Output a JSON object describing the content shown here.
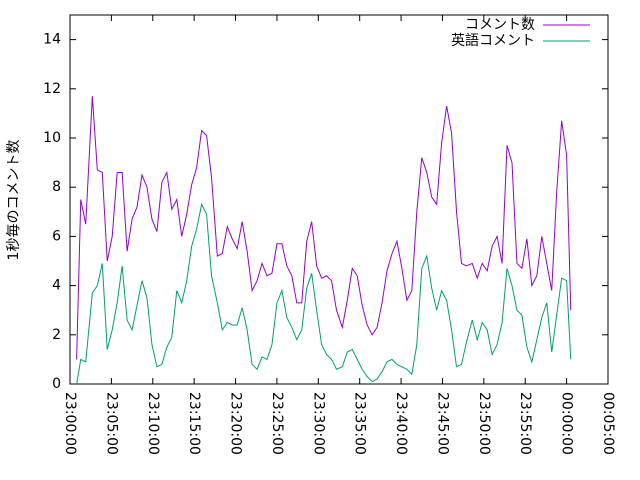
{
  "chart_data": {
    "type": "line",
    "y_label": "1秒毎のコメント数",
    "x": [
      0.8,
      1.3,
      1.9,
      2.7,
      3.3,
      3.9,
      4.5,
      5.1,
      5.7,
      6.3,
      6.9,
      7.5,
      8.1,
      8.7,
      9.3,
      9.9,
      10.5,
      11.1,
      11.7,
      12.3,
      12.9,
      13.5,
      14.1,
      14.7,
      15.3,
      15.9,
      16.5,
      17.1,
      17.8,
      18.4,
      19.0,
      19.6,
      20.2,
      20.8,
      21.4,
      22.0,
      22.6,
      23.2,
      23.8,
      24.4,
      25.0,
      25.6,
      26.2,
      26.8,
      27.4,
      28.0,
      28.6,
      29.2,
      29.8,
      30.4,
      31.0,
      31.6,
      32.2,
      32.9,
      33.5,
      34.1,
      34.7,
      35.3,
      35.9,
      36.5,
      37.1,
      37.7,
      38.3,
      38.9,
      39.5,
      40.1,
      40.7,
      41.3,
      41.9,
      42.5,
      43.1,
      43.7,
      44.3,
      44.9,
      45.5,
      46.1,
      46.7,
      47.3,
      47.9,
      48.6,
      49.2,
      49.8,
      50.4,
      51.0,
      51.6,
      52.2,
      52.8,
      53.4,
      54.0,
      54.6,
      55.2,
      55.8,
      56.4,
      57.0,
      57.6,
      58.2,
      58.8,
      59.4,
      60.0,
      60.5
    ],
    "series": [
      {
        "name": "コメント数",
        "color": "#9400d3",
        "values": [
          1,
          7.5,
          6.5,
          11.7,
          8.7,
          8.6,
          5.0,
          6.0,
          8.6,
          8.6,
          5.4,
          6.7,
          7.2,
          8.5,
          8.0,
          6.7,
          6.2,
          8.2,
          8.6,
          7.1,
          7.5,
          6.0,
          6.9,
          8.1,
          8.8,
          10.3,
          10.1,
          8.4,
          5.2,
          5.3,
          6.4,
          5.9,
          5.5,
          6.6,
          5.4,
          3.8,
          4.2,
          4.9,
          4.4,
          4.5,
          5.7,
          5.7,
          4.8,
          4.4,
          3.3,
          3.3,
          5.8,
          6.6,
          4.8,
          4.3,
          4.4,
          4.2,
          3.0,
          2.3,
          3.4,
          4.7,
          4.4,
          3.2,
          2.4,
          2.0,
          2.3,
          3.3,
          4.6,
          5.3,
          5.8,
          4.7,
          3.4,
          3.8,
          7.0,
          9.2,
          8.6,
          7.6,
          7.3,
          9.8,
          11.3,
          10.2,
          7.0,
          4.9,
          4.8,
          4.9,
          4.3,
          4.9,
          4.6,
          5.6,
          6.0,
          4.9,
          9.7,
          9.0,
          4.9,
          4.7,
          5.9,
          4.0,
          4.4,
          6.0,
          4.9,
          3.8,
          7.8,
          10.7,
          9.3,
          3.0
        ]
      },
      {
        "name": "英語コメント",
        "color": "#009e73",
        "values": [
          0,
          1.0,
          0.9,
          3.7,
          4.0,
          4.9,
          1.4,
          2.2,
          3.3,
          4.8,
          2.6,
          2.2,
          3.2,
          4.2,
          3.5,
          1.6,
          0.7,
          0.8,
          1.5,
          1.9,
          3.8,
          3.3,
          4.2,
          5.6,
          6.3,
          7.3,
          6.9,
          4.4,
          3.3,
          2.2,
          2.5,
          2.4,
          2.4,
          3.1,
          2.2,
          0.8,
          0.6,
          1.1,
          1.0,
          1.6,
          3.3,
          3.8,
          2.7,
          2.3,
          1.8,
          2.2,
          3.9,
          4.5,
          3.0,
          1.6,
          1.2,
          1.0,
          0.6,
          0.7,
          1.3,
          1.4,
          1.0,
          0.6,
          0.3,
          0.1,
          0.2,
          0.5,
          0.9,
          1.0,
          0.8,
          0.7,
          0.6,
          0.4,
          1.6,
          4.7,
          5.2,
          3.9,
          3.0,
          3.8,
          3.4,
          2.2,
          0.7,
          0.8,
          1.7,
          2.6,
          1.8,
          2.5,
          2.2,
          1.2,
          1.6,
          2.5,
          4.7,
          4.0,
          3.0,
          2.8,
          1.5,
          0.9,
          1.8,
          2.7,
          3.3,
          1.3,
          2.8,
          4.3,
          4.2,
          1.0
        ]
      }
    ],
    "xlim": [
      0,
      65
    ],
    "xticks": [
      {
        "value": 0,
        "label": "23:00:00"
      },
      {
        "value": 5,
        "label": "23:05:00"
      },
      {
        "value": 10,
        "label": "23:10:00"
      },
      {
        "value": 15,
        "label": "23:15:00"
      },
      {
        "value": 20,
        "label": "23:20:00"
      },
      {
        "value": 25,
        "label": "23:25:00"
      },
      {
        "value": 30,
        "label": "23:30:00"
      },
      {
        "value": 35,
        "label": "23:35:00"
      },
      {
        "value": 40,
        "label": "23:40:00"
      },
      {
        "value": 45,
        "label": "23:45:00"
      },
      {
        "value": 50,
        "label": "23:50:00"
      },
      {
        "value": 55,
        "label": "23:55:00"
      },
      {
        "value": 60,
        "label": "00:00:00"
      },
      {
        "value": 65,
        "label": "00:05:00"
      }
    ],
    "ylim": [
      0,
      15
    ],
    "yticks": [
      0,
      2,
      4,
      6,
      8,
      10,
      12,
      14
    ],
    "grid": false,
    "legend": "top-right"
  }
}
